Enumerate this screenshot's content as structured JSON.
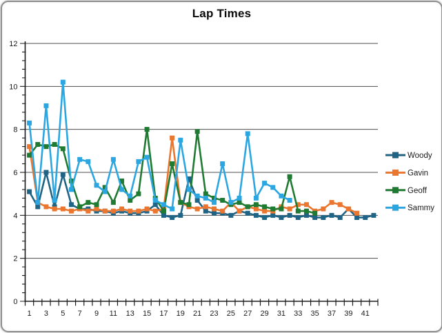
{
  "window": {
    "background": "#ffffff",
    "border_color": "#8f8f8f"
  },
  "chart_data": {
    "type": "line",
    "title": "Lap Times",
    "xlabel": "",
    "ylabel": "",
    "ylim": [
      0,
      12
    ],
    "y_major_step": 2,
    "y_minor_step": 0.4,
    "y_tick_labels": [
      "0",
      "2",
      "4",
      "6",
      "8",
      "10",
      "12"
    ],
    "x_tick_labels": [
      "1",
      "3",
      "5",
      "7",
      "9",
      "11",
      "13",
      "15",
      "17",
      "19",
      "21",
      "23",
      "25",
      "27",
      "29",
      "31",
      "33",
      "35",
      "37",
      "39",
      "41"
    ],
    "categories": [
      1,
      2,
      3,
      4,
      5,
      6,
      7,
      8,
      9,
      10,
      11,
      12,
      13,
      14,
      15,
      16,
      17,
      18,
      19,
      20,
      21,
      22,
      23,
      24,
      25,
      26,
      27,
      28,
      29,
      30,
      31,
      32,
      33,
      34,
      35,
      36,
      37,
      38,
      39,
      40,
      41,
      42
    ],
    "grid": "horizontal-major",
    "legend_position": "right",
    "marker": "square",
    "axis_color": "#1a1a1a",
    "grid_color": "#4d4d4d",
    "series": [
      {
        "name": "Woody",
        "color": "#1F6385",
        "values": [
          5.1,
          4.4,
          6.0,
          4.4,
          5.9,
          4.5,
          4.3,
          4.3,
          4.2,
          4.2,
          4.1,
          4.2,
          4.1,
          4.1,
          4.2,
          4.5,
          4.0,
          3.9,
          4.0,
          5.7,
          4.7,
          4.2,
          4.1,
          4.1,
          4.0,
          4.2,
          4.1,
          4.0,
          3.9,
          4.0,
          3.9,
          4.0,
          3.9,
          4.0,
          3.9,
          3.9,
          4.0,
          3.9,
          4.3,
          3.9,
          3.9,
          4.0
        ]
      },
      {
        "name": "Gavin",
        "color": "#EA762F",
        "values": [
          7.2,
          4.6,
          4.4,
          4.3,
          4.3,
          4.2,
          4.3,
          4.2,
          4.3,
          4.2,
          4.2,
          4.3,
          4.2,
          4.2,
          4.3,
          4.2,
          4.3,
          7.6,
          4.6,
          4.4,
          4.3,
          4.4,
          4.3,
          4.2,
          4.6,
          4.2,
          4.4,
          4.3,
          4.2,
          4.2,
          4.4,
          4.3,
          4.5,
          4.5,
          4.2,
          4.3,
          4.6,
          4.5,
          4.3,
          4.1,
          null,
          null
        ]
      },
      {
        "name": "Geoff",
        "color": "#1E7B31",
        "values": [
          6.8,
          7.3,
          7.2,
          7.3,
          7.1,
          5.6,
          4.4,
          4.6,
          4.5,
          5.3,
          4.6,
          5.6,
          4.7,
          5.0,
          8.0,
          4.8,
          4.2,
          6.4,
          4.6,
          4.5,
          7.9,
          5.0,
          4.8,
          4.7,
          4.5,
          4.6,
          4.4,
          4.5,
          4.4,
          4.3,
          4.3,
          5.8,
          4.2,
          4.2,
          4.1,
          null,
          null,
          null,
          null,
          null,
          null,
          null
        ]
      },
      {
        "name": "Sammy",
        "color": "#2BA6E1",
        "values": [
          8.3,
          4.6,
          9.1,
          4.7,
          10.2,
          5.2,
          6.6,
          6.5,
          5.4,
          5.1,
          6.6,
          5.2,
          4.9,
          6.5,
          6.7,
          4.7,
          4.5,
          4.3,
          7.5,
          5.2,
          4.9,
          4.8,
          4.6,
          6.4,
          4.6,
          4.8,
          7.8,
          4.8,
          5.5,
          5.3,
          4.9,
          4.7,
          null,
          null,
          null,
          null,
          null,
          null,
          null,
          null,
          null,
          null
        ]
      }
    ]
  }
}
